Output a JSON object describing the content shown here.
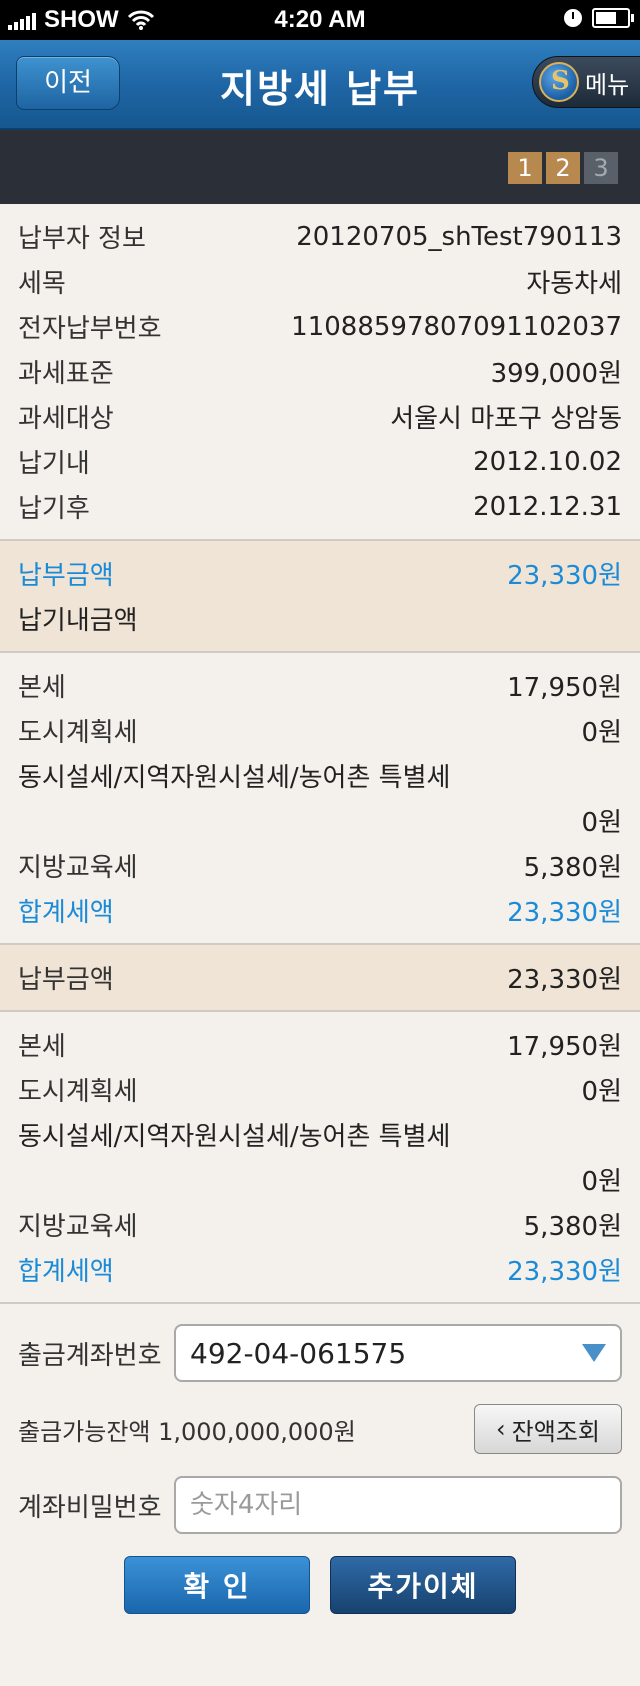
{
  "status_bar": {
    "carrier": "SHOW",
    "time": "4:20 AM"
  },
  "header": {
    "back_label": "이전",
    "title": "지방세 납부",
    "menu_label": "메뉴"
  },
  "steps": [
    "1",
    "2",
    "3"
  ],
  "info": [
    {
      "label": "납부자 정보",
      "value": "20120705_shTest790113"
    },
    {
      "label": "세목",
      "value": "자동차세"
    },
    {
      "label": "전자납부번호",
      "value": "11088597807091102037"
    },
    {
      "label": "과세표준",
      "value": "399,000원"
    },
    {
      "label": "과세대상",
      "value": "서울시 마포구 상암동"
    },
    {
      "label": "납기내",
      "value": "2012.10.02"
    },
    {
      "label": "납기후",
      "value": "2012.12.31"
    }
  ],
  "payment_summary": {
    "label": "납부금액",
    "value": "23,330원",
    "sub_label": "납기내금액"
  },
  "breakdown1": {
    "base_tax_label": "본세",
    "base_tax_value": "17,950원",
    "city_plan_label": "도시계획세",
    "city_plan_value": "0원",
    "facility_label": "동시설세/지역자원시설세/농어촌 특별세",
    "facility_value": "0원",
    "edu_label": "지방교육세",
    "edu_value": "5,380원",
    "total_label": "합계세액",
    "total_value": "23,330원"
  },
  "payment2": {
    "label": "납부금액",
    "value": "23,330원"
  },
  "breakdown2": {
    "base_tax_label": "본세",
    "base_tax_value": "17,950원",
    "city_plan_label": "도시계획세",
    "city_plan_value": "0원",
    "facility_label": "동시설세/지역자원시설세/농어촌 특별세",
    "facility_value": "0원",
    "edu_label": "지방교육세",
    "edu_value": "5,380원",
    "total_label": "합계세액",
    "total_value": "23,330원"
  },
  "form": {
    "account_label": "출금계좌번호",
    "account_value": "492-04-061575",
    "balance_text": "출금가능잔액 1,000,000,000원",
    "inquiry_label": "잔액조회",
    "password_label": "계좌비밀번호",
    "password_placeholder": "숫자4자리"
  },
  "actions": {
    "confirm_label": "확 인",
    "add_transfer_label": "추가이체"
  },
  "colors": {
    "accent_blue": "#1b8bd8",
    "header_blue": "#1f66a6",
    "highlight_bg": "#efe4d6",
    "step_active": "#b8894e"
  }
}
